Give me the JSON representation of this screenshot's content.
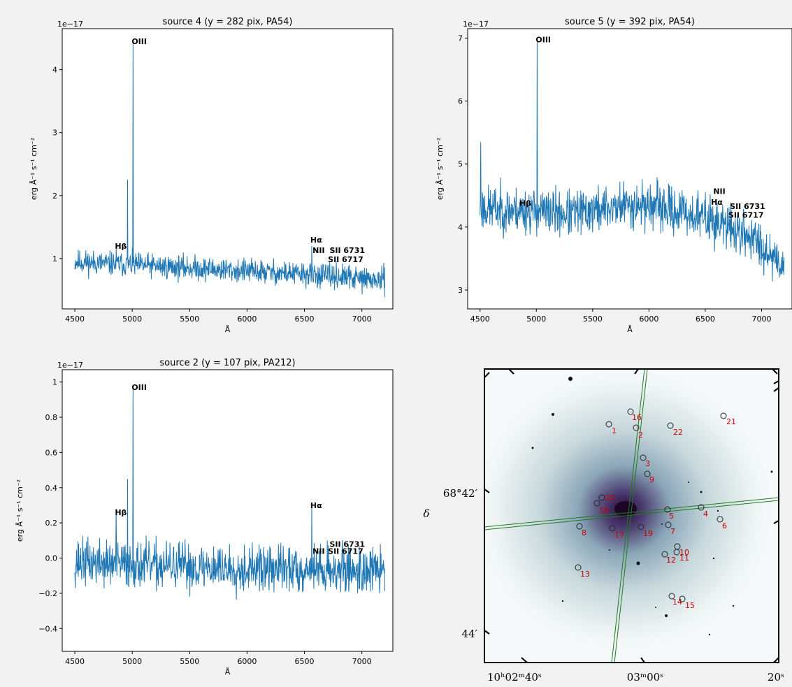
{
  "chart_data": [
    {
      "type": "line",
      "title": "source 4 (y = 282 pix, PA54)",
      "xlabel": "Å",
      "ylabel": "erg Å⁻¹ s⁻¹ cm⁻²",
      "offset_text": "1e−17",
      "xlim": [
        4390,
        7270
      ],
      "ylim": [
        0.2,
        4.65
      ],
      "xticks": [
        4500,
        5000,
        5500,
        6000,
        6500,
        7000
      ],
      "yticks": [
        1,
        2,
        3,
        4
      ],
      "series": [
        {
          "x_range": [
            4500,
            7200
          ],
          "base": [
            [
              4500,
              0.95
            ],
            [
              5500,
              0.85
            ],
            [
              6000,
              0.8
            ],
            [
              6500,
              0.75
            ],
            [
              7200,
              0.65
            ]
          ],
          "noise": 0.16,
          "seed": 11,
          "peaks": [
            {
              "x": 4861,
              "v": 1.15
            },
            {
              "x": 4959,
              "v": 2.25
            },
            {
              "x": 5007,
              "v": 4.48
            },
            {
              "x": 6563,
              "v": 1.2
            }
          ]
        }
      ],
      "annotations": [
        {
          "text": "OIII",
          "x": 5007,
          "y": 4.45
        },
        {
          "text": "Hβ",
          "x": 4861,
          "y": 1.2
        },
        {
          "text": "Hα",
          "x": 6563,
          "y": 1.3
        },
        {
          "text": "NII",
          "x": 6583,
          "y": 1.13
        },
        {
          "text": "SII 6731",
          "x": 6731,
          "y": 1.13
        },
        {
          "text": "SII 6717",
          "x": 6717,
          "y": 0.99
        }
      ]
    },
    {
      "type": "line",
      "title": "source 5 (y = 392 pix, PA54)",
      "xlabel": "Å",
      "ylabel": "erg Å⁻¹ s⁻¹ cm⁻²",
      "offset_text": "1e−17",
      "xlim": [
        4390,
        7270
      ],
      "ylim": [
        2.7,
        7.15
      ],
      "xticks": [
        4500,
        5000,
        5500,
        6000,
        6500,
        7000
      ],
      "yticks": [
        3,
        4,
        5,
        6,
        7
      ],
      "series": [
        {
          "x_range": [
            4500,
            7200
          ],
          "base": [
            [
              4500,
              4.3
            ],
            [
              5000,
              4.25
            ],
            [
              5300,
              4.2
            ],
            [
              5800,
              4.35
            ],
            [
              6000,
              4.35
            ],
            [
              6500,
              4.15
            ],
            [
              6900,
              3.85
            ],
            [
              7200,
              3.4
            ]
          ],
          "noise": 0.3,
          "seed": 23,
          "peaks": [
            {
              "x": 4505,
              "v": 5.35
            },
            {
              "x": 5007,
              "v": 7.0
            }
          ]
        }
      ],
      "annotations": [
        {
          "text": "OIII",
          "x": 5007,
          "y": 6.98
        },
        {
          "text": "NII",
          "x": 6583,
          "y": 4.57
        },
        {
          "text": "Hβ",
          "x": 4861,
          "y": 4.38
        },
        {
          "text": "Hα",
          "x": 6563,
          "y": 4.4
        },
        {
          "text": "SII 6731",
          "x": 6731,
          "y": 4.33
        },
        {
          "text": "SII 6717",
          "x": 6717,
          "y": 4.19
        }
      ]
    },
    {
      "type": "line",
      "title": "source 2 (y = 107 pix, PA212)",
      "xlabel": "Å",
      "ylabel": "erg Å⁻¹ s⁻¹ cm⁻²",
      "offset_text": "1e−17",
      "xlim": [
        4390,
        7270
      ],
      "ylim": [
        -0.53,
        1.07
      ],
      "xticks": [
        4500,
        5000,
        5500,
        6000,
        6500,
        7000
      ],
      "yticks": [
        -0.4,
        -0.2,
        0.0,
        0.2,
        0.4,
        0.6,
        0.8,
        1.0
      ],
      "series": [
        {
          "x_range": [
            4500,
            7200
          ],
          "base": [
            [
              4500,
              -0.02
            ],
            [
              5000,
              -0.04
            ],
            [
              6000,
              -0.06
            ],
            [
              7200,
              -0.07
            ]
          ],
          "noise": 0.11,
          "seed": 37,
          "peaks": [
            {
              "x": 4861,
              "v": 0.28
            },
            {
              "x": 4959,
              "v": 0.45
            },
            {
              "x": 5007,
              "v": 0.98
            },
            {
              "x": 6563,
              "v": 0.3
            }
          ]
        }
      ],
      "annotations": [
        {
          "text": "OIII",
          "x": 5007,
          "y": 0.97
        },
        {
          "text": "Hβ",
          "x": 4861,
          "y": 0.26
        },
        {
          "text": "Hα",
          "x": 6563,
          "y": 0.3
        },
        {
          "text": "SII 6731",
          "x": 6731,
          "y": 0.08
        },
        {
          "text": "NII",
          "x": 6583,
          "y": 0.04
        },
        {
          "text": "SII 6717",
          "x": 6717,
          "y": 0.04
        }
      ]
    }
  ],
  "sky_map": {
    "ylabel": "δ",
    "dec_ticks": [
      "68°42′",
      "44′"
    ],
    "ra_ticks": [
      "10ʰ02ᵐ40ˢ",
      "03ᵐ00ˢ",
      "20ˢ"
    ],
    "marker_color": "#cc0000",
    "sources": [
      "1",
      "16",
      "2",
      "22",
      "21",
      "3",
      "9",
      "20",
      "18",
      "4",
      "5",
      "6",
      "7",
      "8",
      "17",
      "19",
      "10",
      "11",
      "12",
      "13",
      "14",
      "15"
    ]
  }
}
